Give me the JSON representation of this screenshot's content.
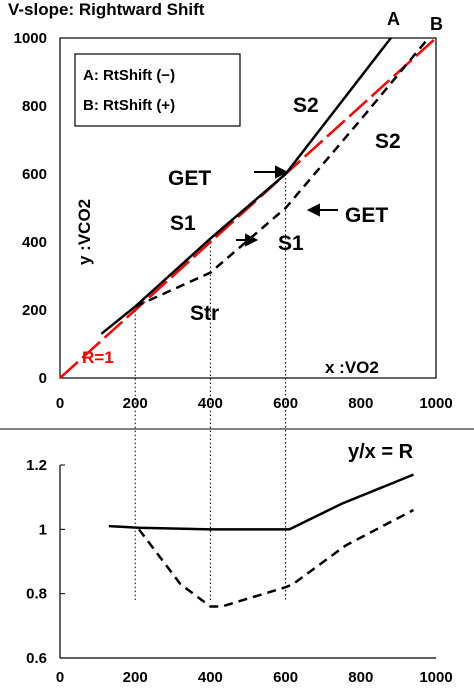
{
  "colors": {
    "fit_line": "#ff0000",
    "series": "#000000",
    "background": "#ffffff"
  },
  "chart_data": [
    {
      "type": "line",
      "title": "V-slope: Rightward Shift",
      "xlabel": "x :VO2",
      "ylabel": "y :VCO2",
      "xlim": [
        0,
        1000
      ],
      "ylim": [
        0,
        1000
      ],
      "x_ticks": [
        "0",
        "200",
        "400",
        "600",
        "800",
        "1000"
      ],
      "y_ticks": [
        "0",
        "200",
        "400",
        "600",
        "800",
        "1000"
      ],
      "grid": false,
      "legend": {
        "placement": "top-left",
        "entries": [
          "A: RtShift (−)",
          "B: RtShift (+)"
        ]
      },
      "series": [
        {
          "name": "A",
          "style": "solid",
          "x": [
            110,
            200,
            400,
            600,
            880
          ],
          "y": [
            130,
            210,
            410,
            600,
            1000
          ]
        },
        {
          "name": "B",
          "style": "dashed",
          "x": [
            200,
            400,
            600,
            800,
            980
          ],
          "y": [
            210,
            310,
            500,
            760,
            1000
          ]
        },
        {
          "name": "R=1",
          "style": "red-dashed",
          "x": [
            0,
            1000
          ],
          "y": [
            0,
            1000
          ]
        }
      ],
      "annotations": {
        "curve_a": "A",
        "curve_b": "B",
        "s2_a": "S2",
        "s2_b": "S2",
        "get_a": "GET",
        "get_b": "GET",
        "s1_a": "S1",
        "s1_b": "S1",
        "str": "Str",
        "r1": "R=1"
      },
      "guides_x": [
        200,
        400,
        600
      ]
    },
    {
      "type": "line",
      "title": "y/x = R",
      "xlim": [
        0,
        1000
      ],
      "ylim": [
        0.6,
        1.2
      ],
      "x_ticks": [
        "0",
        "200",
        "400",
        "600",
        "800",
        "1000"
      ],
      "y_ticks": [
        "0.6",
        "0.8",
        "1",
        "1.2"
      ],
      "grid": false,
      "series": [
        {
          "name": "A",
          "style": "solid",
          "x": [
            130,
            210,
            400,
            610,
            750,
            940
          ],
          "y": [
            1.01,
            1.005,
            1.0,
            1.0,
            1.08,
            1.17
          ]
        },
        {
          "name": "B",
          "style": "dashed",
          "x": [
            210,
            320,
            400,
            430,
            600,
            620,
            760,
            940
          ],
          "y": [
            1.0,
            0.83,
            0.76,
            0.76,
            0.82,
            0.83,
            0.95,
            1.06
          ]
        }
      ]
    }
  ]
}
